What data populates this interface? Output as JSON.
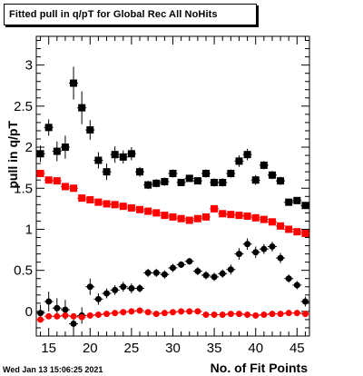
{
  "chart_data": {
    "type": "scatter",
    "title": "Fitted pull in q/pT for Global Rec All NoHits",
    "xlabel": "No. of Fit Points",
    "ylabel": "pull in q/pT",
    "xlim": [
      13.5,
      46.5
    ],
    "ylim": [
      -0.3,
      3.35
    ],
    "xticks": [
      15,
      20,
      25,
      30,
      35,
      40,
      45
    ],
    "yticks": [
      0,
      0.5,
      1,
      1.5,
      2,
      2.5,
      3
    ],
    "tick_labels_x": [
      "15",
      "20",
      "25",
      "30",
      "35",
      "40",
      "45"
    ],
    "tick_labels_y": [
      "0",
      "0.5",
      "1",
      "1.5",
      "2",
      "2.5",
      "3"
    ],
    "grid": false,
    "x": [
      14,
      15,
      16,
      17,
      18,
      19,
      20,
      21,
      22,
      23,
      24,
      25,
      26,
      27,
      28,
      29,
      30,
      31,
      32,
      33,
      34,
      35,
      36,
      37,
      38,
      39,
      40,
      41,
      42,
      43,
      44,
      45,
      46
    ],
    "series": [
      {
        "color": "#000000",
        "marker": "square",
        "values": [
          1.92,
          2.24,
          1.95,
          2.0,
          2.78,
          2.48,
          2.21,
          1.84,
          1.7,
          1.91,
          1.88,
          1.92,
          1.7,
          1.54,
          1.56,
          1.58,
          1.68,
          1.57,
          1.62,
          1.59,
          1.68,
          1.57,
          1.57,
          1.68,
          1.83,
          1.91,
          1.6,
          1.78,
          1.66,
          1.59,
          1.33,
          1.35,
          1.29
        ],
        "errors": [
          0.1,
          0.1,
          0.12,
          0.14,
          0.2,
          0.2,
          0.12,
          0.1,
          0.1,
          0.1,
          0.08,
          0.08,
          0.06,
          0.05,
          0.05,
          0.05,
          0.05,
          0.04,
          0.04,
          0.04,
          0.05,
          0.05,
          0.05,
          0.05,
          0.07,
          0.07,
          0.06,
          0.05,
          0.05,
          0.05,
          0.04,
          0.04,
          0.04
        ]
      },
      {
        "color": "#ff0000",
        "marker": "square",
        "values": [
          1.68,
          1.6,
          1.59,
          1.52,
          1.5,
          1.38,
          1.36,
          1.33,
          1.31,
          1.3,
          1.28,
          1.26,
          1.24,
          1.22,
          1.2,
          1.17,
          1.15,
          1.13,
          1.11,
          1.13,
          1.15,
          1.25,
          1.19,
          1.18,
          1.17,
          1.16,
          1.14,
          1.12,
          1.09,
          1.04,
          1.0,
          0.97,
          0.95
        ],
        "errors": [
          0.02,
          0.02,
          0.02,
          0.02,
          0.02,
          0.02,
          0.02,
          0.02,
          0.02,
          0.02,
          0.02,
          0.02,
          0.02,
          0.02,
          0.02,
          0.02,
          0.02,
          0.02,
          0.02,
          0.02,
          0.02,
          0.02,
          0.02,
          0.02,
          0.02,
          0.02,
          0.02,
          0.02,
          0.02,
          0.02,
          0.02,
          0.02,
          0.02
        ]
      },
      {
        "color": "#000000",
        "marker": "circle",
        "values": [
          -0.02,
          0.12,
          0.04,
          0.02,
          -0.15,
          -0.05,
          0.3,
          0.15,
          0.22,
          0.26,
          0.3,
          0.28,
          0.28,
          0.47,
          0.47,
          0.45,
          0.53,
          0.57,
          0.61,
          0.49,
          0.44,
          0.42,
          0.46,
          0.51,
          0.7,
          0.82,
          0.72,
          0.76,
          0.79,
          0.65,
          0.4,
          0.32,
          0.12
        ],
        "errors": [
          0.1,
          0.12,
          0.12,
          0.12,
          0.1,
          0.1,
          0.1,
          0.07,
          0.06,
          0.06,
          0.06,
          0.06,
          0.05,
          0.05,
          0.05,
          0.05,
          0.05,
          0.04,
          0.04,
          0.05,
          0.05,
          0.05,
          0.05,
          0.06,
          0.07,
          0.07,
          0.07,
          0.06,
          0.06,
          0.06,
          0.05,
          0.05,
          0.06
        ]
      },
      {
        "color": "#ff0000",
        "marker": "circle",
        "values": [
          -0.1,
          -0.06,
          -0.06,
          -0.05,
          -0.06,
          -0.07,
          -0.05,
          -0.04,
          -0.03,
          -0.02,
          -0.01,
          0.0,
          0.01,
          -0.01,
          -0.03,
          -0.02,
          -0.01,
          0.0,
          0.0,
          0.0,
          -0.04,
          -0.04,
          -0.04,
          -0.03,
          -0.03,
          -0.04,
          -0.05,
          -0.04,
          -0.03,
          -0.03,
          -0.02,
          -0.02,
          -0.03
        ],
        "errors": [
          0.02,
          0.02,
          0.02,
          0.02,
          0.02,
          0.02,
          0.02,
          0.02,
          0.02,
          0.02,
          0.02,
          0.02,
          0.02,
          0.02,
          0.02,
          0.02,
          0.02,
          0.02,
          0.02,
          0.02,
          0.02,
          0.02,
          0.02,
          0.02,
          0.02,
          0.02,
          0.02,
          0.02,
          0.02,
          0.02,
          0.02,
          0.02,
          0.02
        ]
      }
    ]
  },
  "footer": {
    "timestamp": "Wed Jan 13 15:06:25 2021"
  }
}
